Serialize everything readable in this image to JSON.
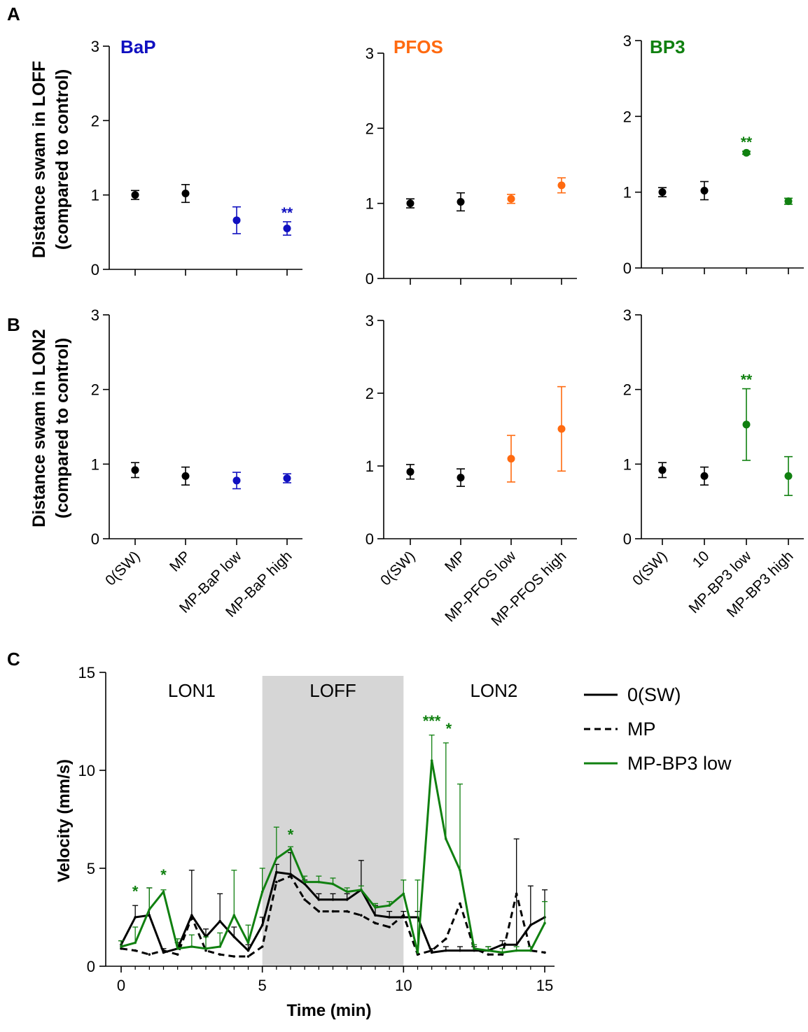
{
  "panel_letters": {
    "a": "A",
    "b": "B",
    "c": "C"
  },
  "colors": {
    "black": "#000000",
    "BaP": "#1010c0",
    "PFOS": "#ff6a10",
    "BP3": "#108010",
    "shade": "#d6d6d6"
  },
  "row_labels": {
    "A": [
      "Distance swam in LOFF",
      "(compared to control)"
    ],
    "B": [
      "Distance swam in LON2",
      "(compared to control)"
    ]
  },
  "chart_data": [
    {
      "id": "A1",
      "type": "scatter",
      "title": "BaP",
      "title_color": "#1010c0",
      "ylim": [
        0,
        3
      ],
      "yticks": [
        "0",
        "1",
        "2",
        "3"
      ],
      "categories": [
        "0(SW)",
        "MP",
        "MP-BaP low",
        "MP-BaP high"
      ],
      "values": [
        1.0,
        1.02,
        0.66,
        0.55
      ],
      "err_low": [
        0.06,
        0.12,
        0.18,
        0.09
      ],
      "err_high": [
        0.06,
        0.12,
        0.18,
        0.09
      ],
      "colors": [
        "#000000",
        "#000000",
        "#1010c0",
        "#1010c0"
      ],
      "annotations": [
        "",
        "",
        "",
        "**"
      ]
    },
    {
      "id": "A2",
      "type": "scatter",
      "title": "PFOS",
      "title_color": "#ff6a10",
      "ylim": [
        0,
        3
      ],
      "yticks": [
        "0",
        "1",
        "2",
        "3"
      ],
      "categories": [
        "0(SW)",
        "MP",
        "MP-PFOS low",
        "MP-PFOS high"
      ],
      "values": [
        1.0,
        1.02,
        1.06,
        1.24
      ],
      "err_low": [
        0.06,
        0.12,
        0.06,
        0.1
      ],
      "err_high": [
        0.06,
        0.12,
        0.06,
        0.1
      ],
      "colors": [
        "#000000",
        "#000000",
        "#ff6a10",
        "#ff6a10"
      ],
      "annotations": [
        "",
        "",
        "",
        ""
      ]
    },
    {
      "id": "A3",
      "type": "scatter",
      "title": "BP3",
      "title_color": "#108010",
      "ylim": [
        0,
        3
      ],
      "yticks": [
        "0",
        "1",
        "2",
        "3"
      ],
      "categories": [
        "0(SW)",
        "10",
        "MP-BP3 low",
        "MP-BP3 high"
      ],
      "values": [
        1.0,
        1.02,
        1.52,
        0.88
      ],
      "err_low": [
        0.06,
        0.12,
        0.02,
        0.04
      ],
      "err_high": [
        0.06,
        0.12,
        0.02,
        0.04
      ],
      "colors": [
        "#000000",
        "#000000",
        "#108010",
        "#108010"
      ],
      "annotations": [
        "",
        "",
        "**",
        ""
      ]
    },
    {
      "id": "B1",
      "type": "scatter",
      "title": "",
      "ylim": [
        0,
        3
      ],
      "yticks": [
        "0",
        "1",
        "2",
        "3"
      ],
      "categories": [
        "0(SW)",
        "MP",
        "MP-BaP low",
        "MP-BaP high"
      ],
      "values": [
        0.92,
        0.84,
        0.78,
        0.81
      ],
      "err_low": [
        0.1,
        0.12,
        0.11,
        0.06
      ],
      "err_high": [
        0.1,
        0.12,
        0.11,
        0.06
      ],
      "colors": [
        "#000000",
        "#000000",
        "#1010c0",
        "#1010c0"
      ],
      "annotations": [
        "",
        "",
        "",
        ""
      ]
    },
    {
      "id": "B2",
      "type": "scatter",
      "title": "",
      "ylim": [
        0,
        3
      ],
      "yticks": [
        "0",
        "1",
        "2",
        "3"
      ],
      "categories": [
        "0(SW)",
        "MP",
        "MP-PFOS low",
        "MP-PFOS high"
      ],
      "values": [
        0.92,
        0.84,
        1.1,
        1.51
      ],
      "err_low": [
        0.1,
        0.12,
        0.32,
        0.58
      ],
      "err_high": [
        0.1,
        0.12,
        0.32,
        0.58
      ],
      "colors": [
        "#000000",
        "#000000",
        "#ff6a10",
        "#ff6a10"
      ],
      "annotations": [
        "",
        "",
        "",
        ""
      ]
    },
    {
      "id": "B3",
      "type": "scatter",
      "title": "",
      "ylim": [
        0,
        3
      ],
      "yticks": [
        "0",
        "1",
        "2",
        "3"
      ],
      "categories": [
        "0(SW)",
        "10",
        "MP-BP3 low",
        "MP-BP3 high"
      ],
      "values": [
        0.92,
        0.84,
        1.53,
        0.84
      ],
      "err_low": [
        0.1,
        0.12,
        0.48,
        0.26
      ],
      "err_high": [
        0.1,
        0.12,
        0.48,
        0.26
      ],
      "colors": [
        "#000000",
        "#000000",
        "#108010",
        "#108010"
      ],
      "annotations": [
        "",
        "",
        "**",
        ""
      ]
    },
    {
      "id": "C",
      "type": "line",
      "xlabel": "Time (min)",
      "ylabel": "Velocity (mm/s)",
      "xlim": [
        0,
        15
      ],
      "ylim": [
        0,
        15
      ],
      "xticks": [
        "0",
        "5",
        "10",
        "15"
      ],
      "yticks": [
        "0",
        "5",
        "10",
        "15"
      ],
      "shaded_region": [
        5,
        10
      ],
      "regions": [
        {
          "label": "LON1",
          "x": 2.5
        },
        {
          "label": "LOFF",
          "x": 7.5
        },
        {
          "label": "LON2",
          "x": 13.2
        }
      ],
      "x": [
        0,
        0.5,
        1,
        1.5,
        2,
        2.5,
        3,
        3.5,
        4,
        4.5,
        5,
        5.5,
        6,
        6.5,
        7,
        7.5,
        8,
        8.5,
        9,
        9.5,
        10,
        10.5,
        11,
        11.5,
        12,
        12.5,
        13,
        13.5,
        14,
        14.5,
        15
      ],
      "series": [
        {
          "name": "0(SW)",
          "color": "#000000",
          "dash": "solid",
          "values": [
            1.1,
            2.5,
            2.6,
            0.7,
            0.9,
            2.6,
            1.5,
            2.3,
            1.5,
            0.8,
            2.1,
            4.8,
            4.7,
            4.2,
            3.4,
            3.4,
            3.4,
            3.9,
            2.6,
            2.5,
            2.5,
            2.5,
            0.7,
            0.8,
            0.8,
            0.8,
            0.8,
            1.1,
            1.1,
            2.1,
            2.5
          ],
          "err": [
            0.2,
            0.6,
            1.4,
            0.2,
            0.3,
            2.3,
            0.4,
            1.4,
            0.5,
            0.3,
            0.4,
            0.4,
            1.1,
            0.2,
            0.3,
            0.3,
            0.3,
            1.5,
            0.5,
            0.3,
            0.3,
            0.3,
            0.2,
            0.2,
            0.2,
            0.2,
            0.2,
            0.2,
            5.4,
            2.0,
            1.4
          ]
        },
        {
          "name": "MP",
          "color": "#000000",
          "dash": "dashed",
          "values": [
            0.9,
            0.8,
            0.6,
            0.8,
            0.6,
            2.5,
            0.8,
            0.6,
            0.5,
            0.5,
            1.0,
            4.3,
            4.6,
            3.4,
            2.8,
            2.8,
            2.8,
            2.6,
            2.2,
            2.0,
            2.6,
            0.6,
            0.8,
            1.4,
            3.2,
            0.9,
            0.6,
            0.6,
            3.7,
            0.8,
            0.7
          ]
        },
        {
          "name": "MP-BP3 low",
          "color": "#108010",
          "dash": "solid",
          "values": [
            1.0,
            1.2,
            2.9,
            3.8,
            0.9,
            1.0,
            0.9,
            1.0,
            2.6,
            1.2,
            3.8,
            5.5,
            6.0,
            4.3,
            4.3,
            4.2,
            3.8,
            3.9,
            3.0,
            3.1,
            3.7,
            0.7,
            10.5,
            6.5,
            4.9,
            0.9,
            0.8,
            0.7,
            0.8,
            0.8,
            2.2
          ],
          "err": [
            0.3,
            0.8,
            1.1,
            0.1,
            0.5,
            0.6,
            0.6,
            0.7,
            2.3,
            0.9,
            1.2,
            1.6,
            0.1,
            0.3,
            0.3,
            0.3,
            0.2,
            0.2,
            0.2,
            0.2,
            0.7,
            3.7,
            1.3,
            4.9,
            4.4,
            0.2,
            0.2,
            0.2,
            0.2,
            0.2,
            1.1
          ]
        }
      ],
      "annotations": [
        {
          "text": "*",
          "x": 0.5,
          "y": 3.55
        },
        {
          "text": "*",
          "x": 1.5,
          "y": 4.4
        },
        {
          "text": "*",
          "x": 6.0,
          "y": 6.45
        },
        {
          "text": "***",
          "x": 11.0,
          "y": 12.25
        },
        {
          "text": "*",
          "x": 11.6,
          "y": 11.85
        }
      ],
      "legend_position": "right"
    }
  ]
}
